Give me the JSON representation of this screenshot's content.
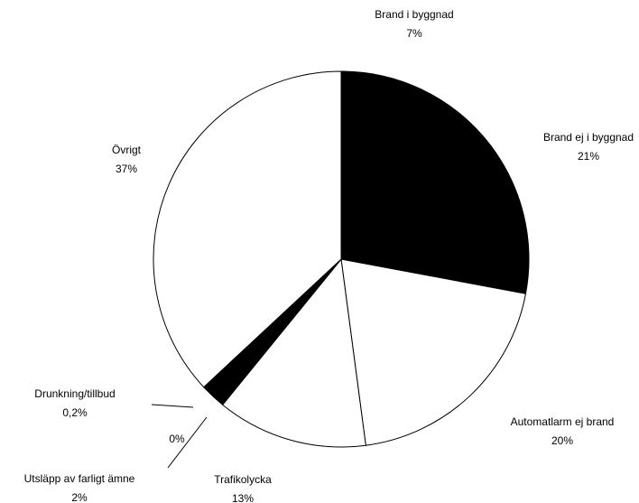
{
  "chart_data": {
    "type": "pie",
    "categories": [
      "Brand i byggnad",
      "Brand ej i byggnad",
      "Automatlarm ej brand",
      "Trafikolycka",
      "Utsläpp av farligt ämne",
      null,
      "Drunkning/tillbud",
      "Övrigt"
    ],
    "values": [
      7,
      21,
      20,
      13,
      2,
      0,
      0.2,
      37
    ],
    "value_labels": [
      "7%",
      "21%",
      "20%",
      "13%",
      "2%",
      "0%",
      "0,2%",
      "37%"
    ],
    "colors": [
      "#000000",
      "#000000",
      "#ffffff",
      "#ffffff",
      "#000000",
      "#000000",
      "#000000",
      "#ffffff"
    ]
  }
}
